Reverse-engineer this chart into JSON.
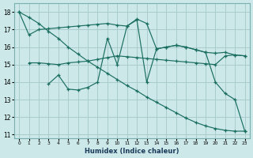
{
  "xlabel": "Humidex (Indice chaleur)",
  "background_color": "#cce8e8",
  "grid_color": "#aacccc",
  "line_color": "#1a6e60",
  "series": [
    {
      "x": [
        0,
        1,
        2,
        3,
        4,
        5,
        6,
        7,
        8,
        9,
        10,
        11,
        12,
        13,
        14,
        15,
        16,
        17,
        18,
        19,
        20,
        21,
        22,
        23
      ],
      "y": [
        18.0,
        16.7,
        17.0,
        17.05,
        17.1,
        17.15,
        17.2,
        17.25,
        17.3,
        17.35,
        17.25,
        17.2,
        17.6,
        17.35,
        15.9,
        16.0,
        16.1,
        16.0,
        15.85,
        15.7,
        15.65,
        15.7,
        15.55,
        15.5
      ]
    },
    {
      "x": [
        1,
        2,
        3,
        4,
        5,
        6,
        7,
        8,
        9,
        10,
        11,
        12,
        13,
        14,
        15,
        16,
        17,
        18,
        19,
        20,
        21,
        22,
        23
      ],
      "y": [
        15.1,
        15.1,
        15.05,
        15.0,
        15.1,
        15.15,
        15.2,
        15.3,
        15.4,
        15.5,
        15.45,
        15.4,
        15.35,
        15.3,
        15.25,
        15.2,
        15.15,
        15.1,
        15.05,
        15.0,
        15.5,
        15.55,
        15.5
      ]
    },
    {
      "x": [
        3,
        4,
        5,
        6,
        7,
        8,
        9,
        10,
        11,
        12,
        13,
        14,
        15,
        16,
        17,
        18,
        19,
        20,
        21,
        22,
        23
      ],
      "y": [
        13.9,
        14.4,
        13.6,
        13.55,
        13.7,
        14.0,
        16.5,
        15.0,
        17.2,
        17.55,
        14.0,
        15.9,
        16.0,
        16.1,
        16.0,
        15.85,
        15.7,
        14.0,
        13.35,
        13.0,
        11.2
      ]
    },
    {
      "x": [
        0,
        1,
        2,
        3,
        4,
        5,
        6,
        7,
        8,
        9,
        10,
        11,
        12,
        13,
        14,
        15,
        16,
        17,
        18,
        19,
        20,
        21,
        22,
        23
      ],
      "y": [
        18.0,
        17.7,
        17.35,
        16.9,
        16.5,
        16.0,
        15.6,
        15.2,
        14.85,
        14.5,
        14.15,
        13.8,
        13.5,
        13.15,
        12.85,
        12.55,
        12.25,
        11.95,
        11.7,
        11.5,
        11.35,
        11.25,
        11.2,
        11.2
      ]
    }
  ],
  "ylim": [
    10.8,
    18.5
  ],
  "xlim": [
    -0.5,
    23.5
  ],
  "yticks": [
    11,
    12,
    13,
    14,
    15,
    16,
    17,
    18
  ],
  "xticks": [
    0,
    1,
    2,
    3,
    4,
    5,
    6,
    7,
    8,
    9,
    10,
    11,
    12,
    13,
    14,
    15,
    16,
    17,
    18,
    19,
    20,
    21,
    22,
    23
  ]
}
